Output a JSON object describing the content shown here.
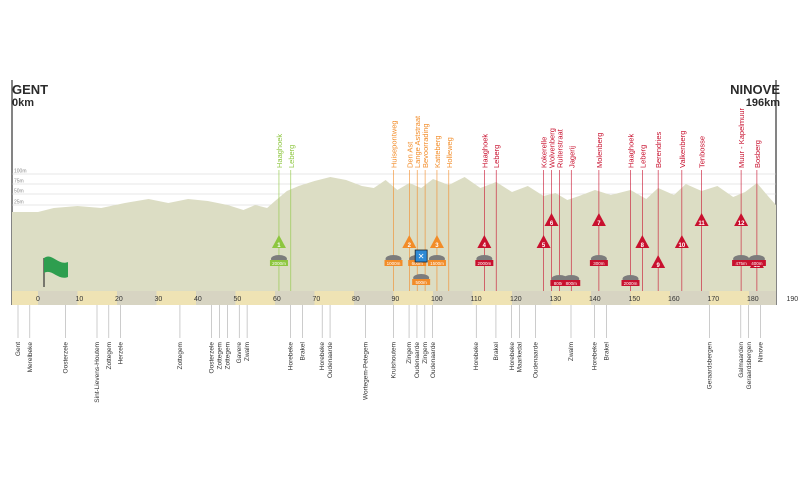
{
  "start": {
    "city": "GENT",
    "km": "0km"
  },
  "finish": {
    "city": "NINOVE",
    "km": "196km"
  },
  "elevation_axis": [
    "100m",
    "75m",
    "50m",
    "25m"
  ],
  "km_axis": [
    "0",
    "10",
    "20",
    "30",
    "40",
    "50",
    "60",
    "70",
    "80",
    "90",
    "100",
    "110",
    "120",
    "130",
    "140",
    "150",
    "160",
    "170",
    "180",
    "190"
  ],
  "colors": {
    "profile": "#dcddc4",
    "band_light": "#efe3b4",
    "band_dark": "#d7d4c2",
    "green": "#8dc63f",
    "orange": "#f28c28",
    "red": "#c8102e",
    "flag": "#2e9e4f"
  },
  "climbs": [
    {
      "n": "1",
      "name": "Haaghoek",
      "km": 61,
      "color": "green",
      "row": 1,
      "paved": "2000m"
    },
    {
      "n": "",
      "name": "Leberg",
      "km": 64,
      "color": "green",
      "row": 0,
      "paved": ""
    },
    {
      "n": "",
      "name": "Huisepontweg",
      "km": 90,
      "color": "orange",
      "row": 0,
      "paved": "1000m"
    },
    {
      "n": "2",
      "name": "Den Ast",
      "km": 94,
      "color": "orange",
      "row": 1,
      "paved": ""
    },
    {
      "n": "",
      "name": "Lange Aststraat",
      "km": 96,
      "color": "orange",
      "row": 0,
      "paved": "600m"
    },
    {
      "n": "",
      "name": "Bevoorrading",
      "km": 98,
      "color": "orange",
      "row": 0,
      "paved": ""
    },
    {
      "n": "3",
      "name": "Katteberg",
      "km": 101,
      "color": "orange",
      "row": 1,
      "paved": "1500m"
    },
    {
      "n": "",
      "name": "Holleweg",
      "km": 104,
      "color": "orange",
      "row": 0,
      "paved": ""
    },
    {
      "n": "4",
      "name": "Haaghoek",
      "km": 113,
      "color": "red",
      "row": 1,
      "paved": "2000m"
    },
    {
      "n": "",
      "name": "Leberg",
      "km": 116,
      "color": "red",
      "row": 0,
      "paved": ""
    },
    {
      "n": "5",
      "name": "Kokerelle",
      "km": 128,
      "color": "red",
      "row": 1,
      "paved": ""
    },
    {
      "n": "6",
      "name": "Wolvenberg",
      "km": 130,
      "color": "red",
      "row": 2,
      "paved": ""
    },
    {
      "n": "",
      "name": "Ruiterstraat",
      "km": 132,
      "color": "red",
      "row": 0,
      "paved": "800m"
    },
    {
      "n": "",
      "name": "Jagerij",
      "km": 135,
      "color": "red",
      "row": 0,
      "paved": "800m"
    },
    {
      "n": "7",
      "name": "Molenberg",
      "km": 142,
      "color": "red",
      "row": 2,
      "paved": "300m"
    },
    {
      "n": "",
      "name": "Haaghoek",
      "km": 150,
      "color": "red",
      "row": 0,
      "paved": "2000m"
    },
    {
      "n": "8",
      "name": "Leberg",
      "km": 153,
      "color": "red",
      "row": 1,
      "paved": ""
    },
    {
      "n": "9",
      "name": "Berendries",
      "km": 157,
      "color": "red",
      "row": 3,
      "paved": ""
    },
    {
      "n": "10",
      "name": "Valkenberg",
      "km": 163,
      "color": "red",
      "row": 1,
      "paved": ""
    },
    {
      "n": "11",
      "name": "Tenbosse",
      "km": 168,
      "color": "red",
      "row": 2,
      "paved": ""
    },
    {
      "n": "12",
      "name": "Muur - Kapelmuur",
      "km": 178,
      "color": "red",
      "row": 2,
      "paved": "475m"
    },
    {
      "n": "13",
      "name": "Bosberg",
      "km": 182,
      "color": "red",
      "row": 3,
      "paved": "400m"
    }
  ],
  "feed_zone": {
    "km": 97,
    "paved": "500m"
  },
  "places": [
    {
      "name": "Gent",
      "km": 0
    },
    {
      "name": "Merelbeke",
      "km": 3
    },
    {
      "name": "Oosterzele",
      "km": 12
    },
    {
      "name": "Sint-Lievens-Houtem",
      "km": 20
    },
    {
      "name": "Zottegem",
      "km": 23
    },
    {
      "name": "Herzele",
      "km": 26
    },
    {
      "name": "Zottegem",
      "km": 41
    },
    {
      "name": "Oosterzele",
      "km": 49
    },
    {
      "name": "Zottegem",
      "km": 51
    },
    {
      "name": "Zottegem",
      "km": 53
    },
    {
      "name": "Gavere",
      "km": 56
    },
    {
      "name": "Zwalm",
      "km": 58
    },
    {
      "name": "Horebeke",
      "km": 69
    },
    {
      "name": "Brakel",
      "km": 72
    },
    {
      "name": "Horebeke",
      "km": 77
    },
    {
      "name": "Oudenaarde",
      "km": 79
    },
    {
      "name": "Wortegem-Petegem",
      "km": 88
    },
    {
      "name": "Kruishoutem",
      "km": 95
    },
    {
      "name": "Zingem",
      "km": 99
    },
    {
      "name": "Oudenaarde",
      "km": 101
    },
    {
      "name": "Zingem",
      "km": 103
    },
    {
      "name": "Oudenaarde",
      "km": 105
    },
    {
      "name": "Horebeke",
      "km": 116
    },
    {
      "name": "Brakel",
      "km": 121
    },
    {
      "name": "Horebeke",
      "km": 125
    },
    {
      "name": "Maarkedal",
      "km": 127
    },
    {
      "name": "Oudenaarde",
      "km": 131
    },
    {
      "name": "Zwalm",
      "km": 140
    },
    {
      "name": "Horebeke",
      "km": 146
    },
    {
      "name": "Brakel",
      "km": 149
    },
    {
      "name": "Geraardsbergen",
      "km": 175
    },
    {
      "name": "Galmaarden",
      "km": 183
    },
    {
      "name": "Geraardsbergen",
      "km": 185
    },
    {
      "name": "Ninove",
      "km": 188
    }
  ]
}
